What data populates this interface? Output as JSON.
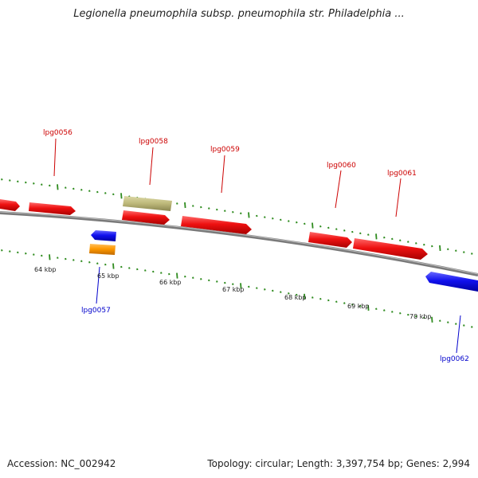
{
  "title": "Legionella pneumophila subsp. pneumophila str. Philadelphia ...",
  "footer": {
    "accession": "Accession: NC_002942",
    "summary": "Topology: circular; Length: 3,397,754 bp; Genes: 2,994"
  },
  "colors": {
    "backbone": "#7a7a7a",
    "tick": "#2e8b1e",
    "forward_label": "#cc0000",
    "reverse_label": "#0000cc",
    "gene_red": "#ee1111",
    "gene_blue": "#1111ee",
    "gene_orange": "#ff9900",
    "gene_olive": "#bdb87a"
  },
  "scale": {
    "unit": "kbp",
    "labels": [
      "64 kbp",
      "65 kbp",
      "66 kbp",
      "67 kbp",
      "68 kbp",
      "69 kbp",
      "70 kbp"
    ]
  },
  "gene_labels": [
    {
      "name": "lpg0056",
      "strand": "forward"
    },
    {
      "name": "lpg0057",
      "strand": "reverse"
    },
    {
      "name": "lpg0058",
      "strand": "forward"
    },
    {
      "name": "lpg0059",
      "strand": "forward"
    },
    {
      "name": "lpg0060",
      "strand": "forward"
    },
    {
      "name": "lpg0061",
      "strand": "forward"
    },
    {
      "name": "lpg0062",
      "strand": "reverse"
    }
  ]
}
